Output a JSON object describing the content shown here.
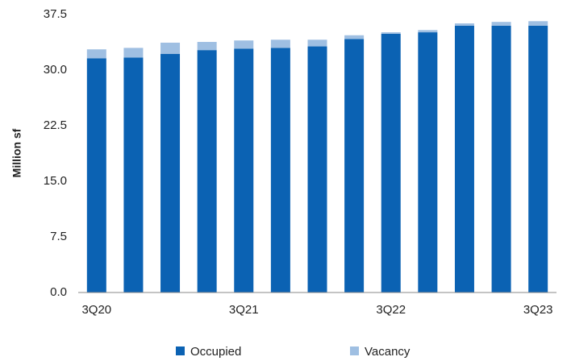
{
  "chart_data": {
    "type": "stacked_bar",
    "categories": [
      "3Q20",
      null,
      null,
      null,
      "3Q21",
      null,
      null,
      null,
      "3Q22",
      null,
      null,
      null,
      "3Q23"
    ],
    "series": [
      {
        "name": "Occupied",
        "color": "#0b62b3",
        "values": [
          31.6,
          31.7,
          32.2,
          32.7,
          32.9,
          33.0,
          33.2,
          34.2,
          34.9,
          35.1,
          36.0,
          36.0,
          36.0
        ]
      },
      {
        "name": "Vacancy",
        "color": "#9fbfe2",
        "values": [
          1.2,
          1.3,
          1.5,
          1.1,
          1.1,
          1.1,
          0.9,
          0.5,
          0.2,
          0.3,
          0.3,
          0.5,
          0.6
        ]
      }
    ],
    "y_label": "Million sf",
    "ylim": [
      0,
      37.5
    ],
    "yticks": [
      {
        "value": 0,
        "label": "0.0"
      },
      7.5,
      {
        "value": 15,
        "label": "15.0"
      },
      22.5,
      {
        "value": 30,
        "label": "30.0"
      },
      37.5
    ],
    "grid": false,
    "legend": "bottom"
  }
}
